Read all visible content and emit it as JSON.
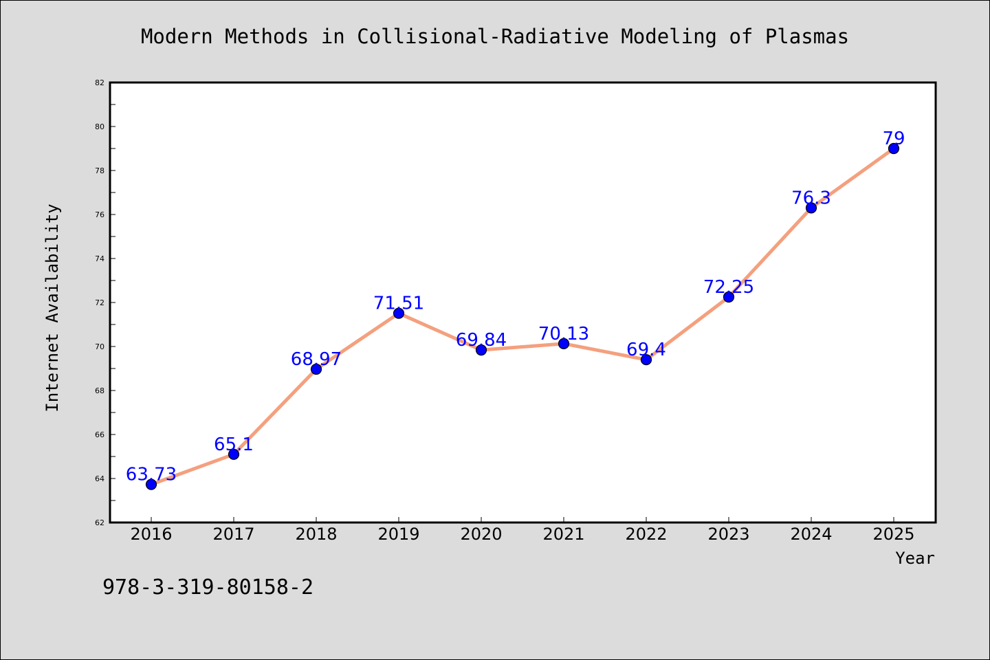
{
  "chart_data": {
    "type": "line",
    "title": "Modern Methods in Collisional-Radiative Modeling of Plasmas",
    "xlabel": "Year",
    "ylabel": "Internet Availability",
    "categories": [
      "2016",
      "2017",
      "2018",
      "2019",
      "2020",
      "2021",
      "2022",
      "2023",
      "2024",
      "2025"
    ],
    "series": [
      {
        "values": [
          63.73,
          65.1,
          68.97,
          71.51,
          69.84,
          70.13,
          69.4,
          72.25,
          76.3,
          79
        ]
      }
    ],
    "data_labels": [
      "63.73",
      "65.1",
      "68.97",
      "71.51",
      "69.84",
      "70.13",
      "69.4",
      "72.25",
      "76.3",
      "79"
    ],
    "ylim": [
      62,
      82
    ],
    "y_ticks": [
      "62",
      "64",
      "66",
      "68",
      "70",
      "72",
      "74",
      "76",
      "78",
      "80",
      "82"
    ],
    "grid": false,
    "colors": {
      "line": "#f4a07e",
      "marker": "#0000ff",
      "label": "#0000ff",
      "plot_bg": "#ffffff",
      "page_bg": "#dcdcdc"
    }
  },
  "footer": {
    "isbn": "978-3-319-80158-2"
  }
}
